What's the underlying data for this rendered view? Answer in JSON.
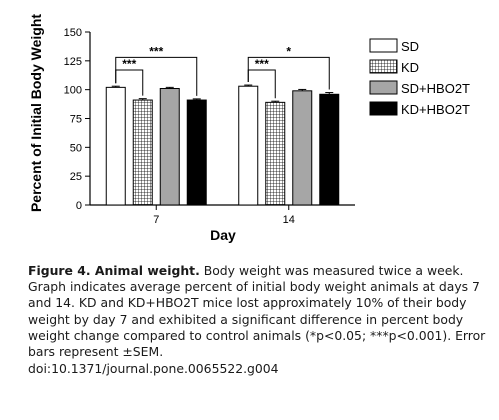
{
  "chart_data": {
    "type": "bar",
    "ylabel": "Percent of Initial Body Weight",
    "xlabel": "Day",
    "ylim": [
      0,
      150
    ],
    "yticks": [
      0,
      25,
      50,
      75,
      100,
      125,
      150
    ],
    "categories": [
      "7",
      "14"
    ],
    "series": [
      {
        "name": "SD",
        "fill": "#ffffff",
        "pattern": "none",
        "values": [
          102,
          103
        ],
        "sem": [
          1.0,
          1.0
        ]
      },
      {
        "name": "KD",
        "fill": "#ffffff",
        "pattern": "grid",
        "values": [
          91,
          89
        ],
        "sem": [
          1.2,
          1.0
        ]
      },
      {
        "name": "SD+HBO2T",
        "fill": "#a6a6a6",
        "pattern": "none",
        "values": [
          101,
          99
        ],
        "sem": [
          1.0,
          1.2
        ]
      },
      {
        "name": "KD+HBO2T",
        "fill": "#000000",
        "pattern": "none",
        "values": [
          91,
          96
        ],
        "sem": [
          1.0,
          1.5
        ]
      }
    ],
    "legend_placement": "right",
    "significance": [
      {
        "category": "7",
        "from_series": 0,
        "to_series": 1,
        "label": "***",
        "y": 117
      },
      {
        "category": "7",
        "from_series": 0,
        "to_series": 3,
        "label": "***",
        "y": 128
      },
      {
        "category": "14",
        "from_series": 0,
        "to_series": 1,
        "label": "***",
        "y": 117
      },
      {
        "category": "14",
        "from_series": 0,
        "to_series": 3,
        "label": "*",
        "y": 128
      }
    ]
  },
  "caption": {
    "label": "Figure 4. Animal weight.",
    "text": " Body weight was measured twice a week. Graph indicates average percent of initial body weight animals at days 7 and 14.  KD and KD+HBO2T mice lost approximately 10% of their body weight by day 7 and exhibited a significant difference in percent body weight change compared to control animals (*p<0.05; ***p<0.001). Error bars represent ±SEM.",
    "doi": "doi:10.1371/journal.pone.0065522.g004"
  }
}
